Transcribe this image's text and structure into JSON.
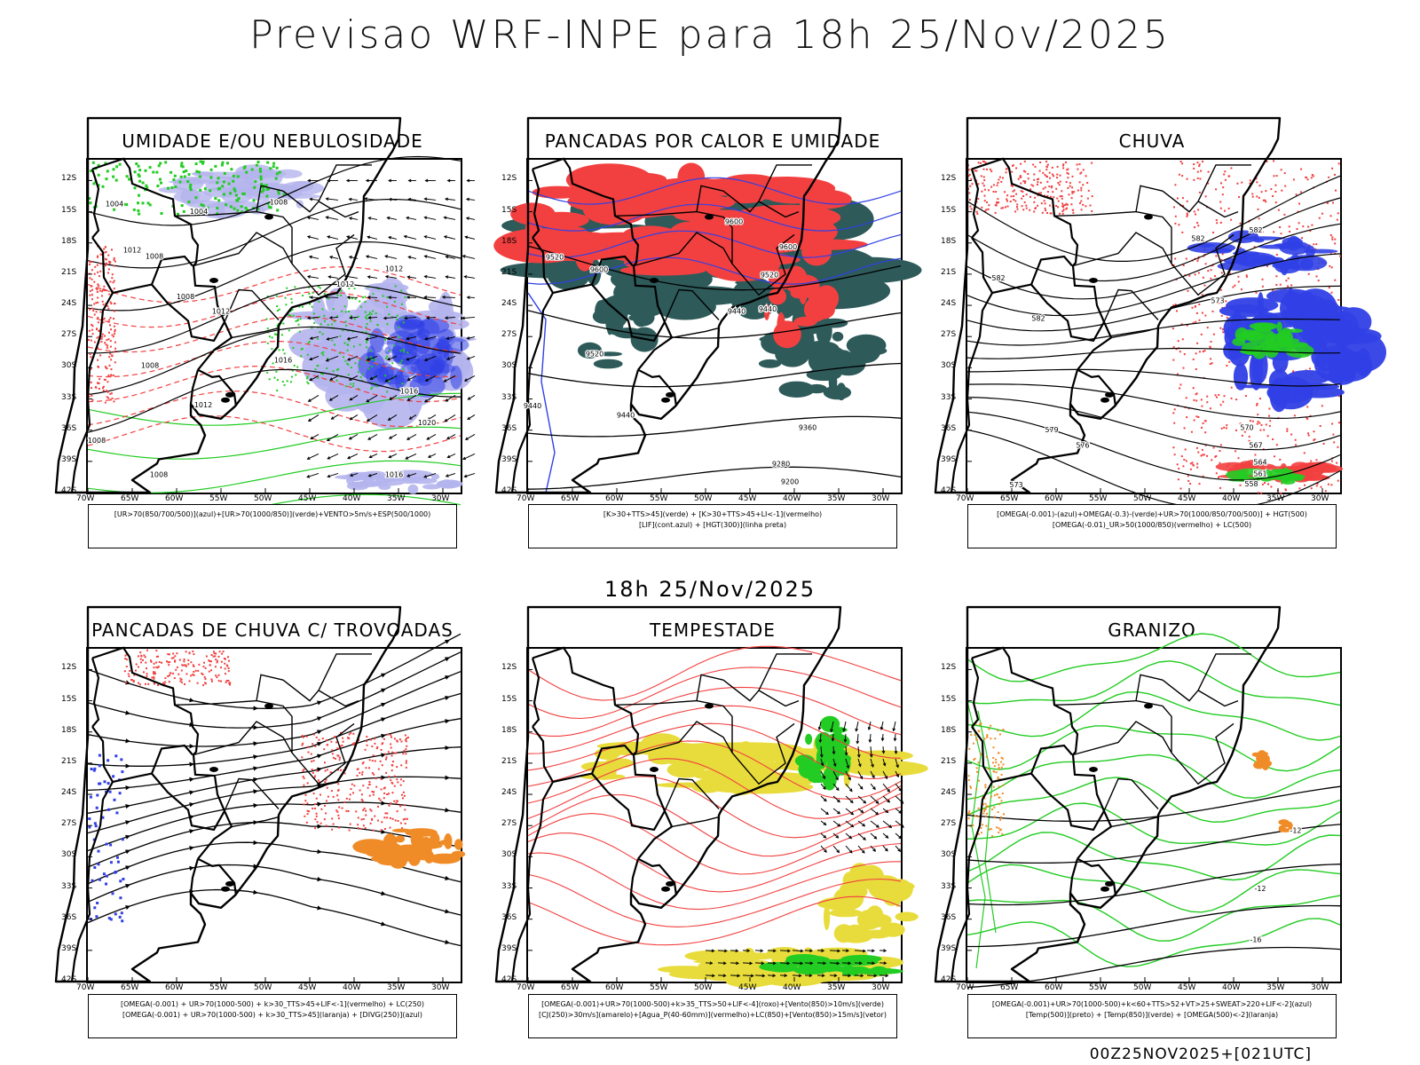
{
  "title": "Previsao WRF-INPE  para 18h 25/Nov/2025",
  "mid_title": "18h 25/Nov/2025",
  "footer_code": "00Z25NOV2025+[021UTC]",
  "colors": {
    "red": "#f24040",
    "blue": "#3040e6",
    "green": "#22cc22",
    "lavender": "#b4b4ee",
    "teal": "#2e5a5a",
    "yellow": "#e8dc3c",
    "orange": "#f08c28"
  },
  "axes": {
    "lat_ticks": [
      "12S",
      "15S",
      "18S",
      "21S",
      "24S",
      "27S",
      "30S",
      "33S",
      "36S",
      "39S",
      "42S"
    ],
    "lon_ticks": [
      "70W",
      "65W",
      "60W",
      "55W",
      "50W",
      "45W",
      "40W",
      "35W",
      "30W"
    ]
  },
  "panels": [
    {
      "title": "UMIDADE E/OU NEBULOSIDADE",
      "legend": [
        "[UR>70(850/700/500)](azul)+[UR>70(1000/850)](verde)+VENTO>5m/s+ESP(500/1000)"
      ],
      "labels": [
        {
          "t": "1004",
          "lon": -67,
          "lat": -14.5
        },
        {
          "t": "1004",
          "lon": -57.5,
          "lat": -15.2
        },
        {
          "t": "1008",
          "lon": -48.5,
          "lat": -14.3
        },
        {
          "t": "1012",
          "lon": -65,
          "lat": -18.9
        },
        {
          "t": "1008",
          "lon": -62.5,
          "lat": -19.5
        },
        {
          "t": "1012",
          "lon": -35.5,
          "lat": -20.7
        },
        {
          "t": "1008",
          "lon": -59,
          "lat": -23.4
        },
        {
          "t": "1012",
          "lon": -55,
          "lat": -24.8
        },
        {
          "t": "1012",
          "lon": -41,
          "lat": -22.2
        },
        {
          "t": "1008",
          "lon": -63,
          "lat": -30
        },
        {
          "t": "1016",
          "lon": -48,
          "lat": -29.5
        },
        {
          "t": "1012",
          "lon": -57,
          "lat": -33.8
        },
        {
          "t": "1016",
          "lon": -33.8,
          "lat": -32.5
        },
        {
          "t": "1020",
          "lon": -31.8,
          "lat": -35.5
        },
        {
          "t": "1008",
          "lon": -69,
          "lat": -37.2
        },
        {
          "t": "1008",
          "lon": -62,
          "lat": -40.5
        },
        {
          "t": "1016",
          "lon": -35.5,
          "lat": -40.5
        }
      ]
    },
    {
      "title": "PANCADAS POR CALOR E UMIDADE",
      "legend": [
        "[K>30+TTS>45](verde) + [K>30+TTS>45+LI<-1](vermelho)",
        "[LIF](cont.azul) + [HGT(300)](linha preta)"
      ],
      "labels": [
        {
          "t": "9600",
          "lon": -46.8,
          "lat": -16.2
        },
        {
          "t": "9600",
          "lon": -40.7,
          "lat": -18.6
        },
        {
          "t": "9520",
          "lon": -67,
          "lat": -19.6
        },
        {
          "t": "9600",
          "lon": -62,
          "lat": -20.8
        },
        {
          "t": "9520",
          "lon": -42.8,
          "lat": -21.3
        },
        {
          "t": "9440",
          "lon": -43,
          "lat": -24.6
        },
        {
          "t": "9440",
          "lon": -46.5,
          "lat": -24.8
        },
        {
          "t": "9520",
          "lon": -62.5,
          "lat": -28.9
        },
        {
          "t": "9440",
          "lon": -69.5,
          "lat": -33.9
        },
        {
          "t": "9440",
          "lon": -59,
          "lat": -34.8
        },
        {
          "t": "9360",
          "lon": -38.5,
          "lat": -36
        },
        {
          "t": "9280",
          "lon": -41.5,
          "lat": -39.5
        },
        {
          "t": "9200",
          "lon": -40.5,
          "lat": -41.2
        }
      ]
    },
    {
      "title": "CHUVA",
      "legend": [
        "[OMEGA(-0.001)-(azul)+OMEGA(-0.3)-(verde)+UR>70(1000/850/700/500)] + HGT(500)",
        "[OMEGA(-0.01)_UR>50(1000/850)(vermelho) + LC(500)"
      ],
      "labels": [
        {
          "t": "582",
          "lon": -44,
          "lat": -17.8
        },
        {
          "t": "582",
          "lon": -37.5,
          "lat": -17
        },
        {
          "t": "582",
          "lon": -66.5,
          "lat": -21.6
        },
        {
          "t": "582",
          "lon": -62,
          "lat": -25.5
        },
        {
          "t": "573",
          "lon": -41.8,
          "lat": -23.8
        },
        {
          "t": "579",
          "lon": -60.5,
          "lat": -36.2
        },
        {
          "t": "576",
          "lon": -57,
          "lat": -37.7
        },
        {
          "t": "570",
          "lon": -38.5,
          "lat": -36
        },
        {
          "t": "567",
          "lon": -37.5,
          "lat": -37.7
        },
        {
          "t": "564",
          "lon": -37,
          "lat": -39.3
        },
        {
          "t": "561",
          "lon": -37,
          "lat": -40.4
        },
        {
          "t": "558",
          "lon": -38,
          "lat": -41.4
        },
        {
          "t": "573",
          "lon": -64.5,
          "lat": -41.5
        }
      ]
    },
    {
      "title": "PANCADAS DE CHUVA C/ TROVOADAS",
      "legend": [
        "[OMEGA(-0.001) + UR>70(1000-500) + k>30_TTS>45+LIF<-1](vermelho) + LC(250)",
        "[OMEGA(-0.001) + UR>70(1000-500) + k>30_TTS>45](laranja) + [DIVG(250)](azul)"
      ],
      "labels": []
    },
    {
      "title": "TEMPESTADE",
      "legend": [
        "[OMEGA(-0.001)+UR>70(1000-500)+k>35_TTS>50+LIF<-4](roxo)+[Vento(850)>10m/s](verde)",
        "[CJ(250)>30m/s](amarelo)+[Agua_P(40-60mm)](vermelho)+LC(850)+[Vento(850)>15m/s](vetor)"
      ],
      "labels": []
    },
    {
      "title": "GRANIZO",
      "legend": [
        "[OMEGA(-0.001)+UR>70(1000-500)+k<60+TTS>52+VT>25+SWEAT>220+LIF<-2](azul)",
        "[Temp(500)](preto) + [Temp(850)](verde) + [OMEGA(500)<-2](laranja)"
      ],
      "labels": [
        {
          "t": "-12",
          "lon": -33,
          "lat": -27.7
        },
        {
          "t": "-12",
          "lon": -37,
          "lat": -33.3
        },
        {
          "t": "-16",
          "lon": -37.5,
          "lat": -38.2
        }
      ]
    }
  ]
}
